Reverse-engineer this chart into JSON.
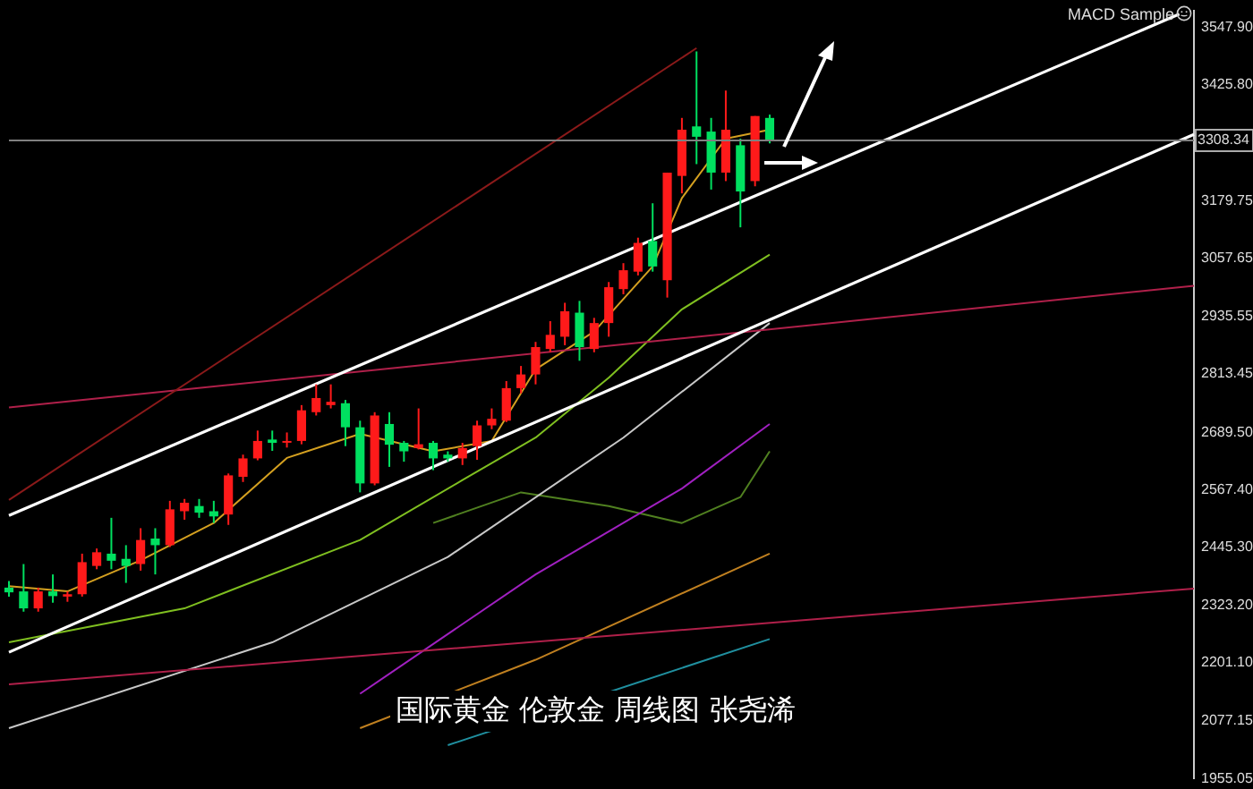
{
  "chart_data": {
    "type": "candlestick",
    "categories": [
      null,
      null,
      null,
      null,
      null,
      null,
      null,
      null,
      null,
      null,
      null,
      null,
      null,
      null,
      null,
      null,
      null,
      null,
      null,
      null,
      null,
      null,
      null,
      null,
      null,
      null,
      null,
      null,
      null,
      null,
      null,
      null,
      null,
      null,
      null,
      null,
      null,
      null,
      null,
      null,
      null,
      null,
      null,
      null,
      null,
      null,
      null,
      null,
      null,
      null,
      null,
      null,
      null,
      null,
      null,
      null,
      null,
      null,
      null,
      null,
      null,
      null,
      null,
      null,
      null,
      null,
      null,
      null,
      null,
      null,
      null,
      null,
      null,
      null,
      null,
      null,
      null,
      null,
      null,
      null,
      null,
      null
    ],
    "ohlc": [
      [
        2360,
        2374,
        2341,
        2350
      ],
      [
        2352,
        2410,
        2309,
        2316
      ],
      [
        2316,
        2360,
        2309,
        2352
      ],
      [
        2352,
        2388,
        2328,
        2342
      ],
      [
        2341,
        2352,
        2330,
        2346
      ],
      [
        2346,
        2432,
        2341,
        2414
      ],
      [
        2406,
        2443,
        2399,
        2435
      ],
      [
        2432,
        2508,
        2399,
        2417
      ],
      [
        2421,
        2450,
        2370,
        2406
      ],
      [
        2410,
        2486,
        2396,
        2461
      ],
      [
        2464,
        2486,
        2388,
        2450
      ],
      [
        2450,
        2544,
        2446,
        2526
      ],
      [
        2522,
        2548,
        2504,
        2540
      ],
      [
        2533,
        2548,
        2508,
        2519
      ],
      [
        2522,
        2544,
        2497,
        2511
      ],
      [
        2515,
        2602,
        2493,
        2598
      ],
      [
        2595,
        2642,
        2584,
        2634
      ],
      [
        2634,
        2693,
        2630,
        2671
      ],
      [
        2674,
        2693,
        2650,
        2667
      ],
      [
        2668,
        2689,
        2657,
        2671
      ],
      [
        2671,
        2747,
        2664,
        2736
      ],
      [
        2732,
        2791,
        2725,
        2762
      ],
      [
        2747,
        2791,
        2740,
        2754
      ],
      [
        2751,
        2758,
        2660,
        2700
      ],
      [
        2700,
        2714,
        2562,
        2581
      ],
      [
        2581,
        2732,
        2577,
        2725
      ],
      [
        2707,
        2732,
        2616,
        2663
      ],
      [
        2667,
        2671,
        2627,
        2649
      ],
      [
        2656,
        2740,
        2653,
        2664
      ],
      [
        2667,
        2671,
        2609,
        2634
      ],
      [
        2642,
        2649,
        2627,
        2634
      ],
      [
        2634,
        2667,
        2620,
        2656
      ],
      [
        2660,
        2714,
        2631,
        2704
      ],
      [
        2704,
        2740,
        2696,
        2718
      ],
      [
        2714,
        2798,
        2711,
        2783
      ],
      [
        2783,
        2830,
        2772,
        2812
      ],
      [
        2812,
        2881,
        2791,
        2870
      ],
      [
        2866,
        2925,
        2859,
        2896
      ],
      [
        2892,
        2964,
        2874,
        2946
      ],
      [
        2943,
        2968,
        2841,
        2870
      ],
      [
        2866,
        2932,
        2859,
        2921
      ],
      [
        2921,
        3008,
        2892,
        2997
      ],
      [
        2993,
        3048,
        2982,
        3033
      ],
      [
        3030,
        3102,
        3022,
        3091
      ],
      [
        3095,
        3175,
        3030,
        3041
      ],
      [
        3012,
        3240,
        2975,
        3240
      ],
      [
        3233,
        3356,
        3196,
        3331
      ],
      [
        3338,
        3497,
        3258,
        3316
      ],
      [
        3327,
        3356,
        3204,
        3240
      ],
      [
        3240,
        3414,
        3222,
        3331
      ],
      [
        3298,
        3312,
        3124,
        3200
      ],
      [
        3222,
        3360,
        3211,
        3360
      ],
      [
        3356,
        3363,
        3302,
        3309
      ],
      null,
      null,
      null,
      null,
      null,
      null,
      null,
      null,
      null,
      null,
      null,
      null,
      null,
      null,
      null,
      null,
      null,
      null,
      null,
      null,
      null,
      null,
      null,
      null,
      null,
      null,
      null,
      null,
      null
    ],
    "colors": [
      "#00e060",
      "#00e060",
      "#ff1a1a",
      "#00e060",
      "#ff1a1a",
      "#ff1a1a",
      "#ff1a1a",
      "#00e060",
      "#00e060",
      "#ff1a1a",
      "#00e060",
      "#ff1a1a",
      "#ff1a1a",
      "#00e060",
      "#00e060",
      "#ff1a1a",
      "#ff1a1a",
      "#ff1a1a",
      "#00e060",
      "#ff1a1a",
      "#ff1a1a",
      "#ff1a1a",
      "#ff1a1a",
      "#00e060",
      "#00e060",
      "#ff1a1a",
      "#00e060",
      "#00e060",
      "#ff1a1a",
      "#00e060",
      "#00e060",
      "#ff1a1a",
      "#ff1a1a",
      "#ff1a1a",
      "#ff1a1a",
      "#ff1a1a",
      "#ff1a1a",
      "#ff1a1a",
      "#ff1a1a",
      "#00e060",
      "#ff1a1a",
      "#ff1a1a",
      "#ff1a1a",
      "#ff1a1a",
      "#00e060",
      "#ff1a1a",
      "#ff1a1a",
      "#00e060",
      "#00e060",
      "#ff1a1a",
      "#00e060",
      "#ff1a1a",
      "#00e060",
      null,
      null,
      null,
      null,
      null,
      null,
      null,
      null,
      null,
      null,
      null,
      null,
      null,
      null,
      null,
      null,
      null,
      null,
      null,
      null,
      null,
      null,
      null,
      null,
      null,
      null,
      null,
      null,
      null
    ],
    "series": [
      {
        "type": "line",
        "color": "#ffffff",
        "values": [
          2513,
          null,
          null,
          null,
          null,
          null,
          null,
          null,
          null,
          null,
          null,
          null,
          null,
          null,
          null,
          null,
          null,
          null,
          null,
          null,
          null,
          null,
          null,
          null,
          null,
          null,
          null,
          null,
          null,
          null,
          null,
          null,
          null,
          null,
          null,
          null,
          null,
          null,
          null,
          null,
          null,
          null,
          null,
          null,
          null,
          null,
          null,
          null,
          null,
          null,
          null,
          null,
          null,
          null,
          null,
          null,
          null,
          null,
          null,
          null,
          null,
          null,
          null,
          null,
          null,
          null,
          null,
          null,
          null,
          null,
          null,
          null,
          null,
          null,
          null,
          null,
          null,
          null,
          null,
          null,
          3576,
          null
        ]
      },
      {
        "type": "line",
        "color": "#ffffff",
        "values": [
          2223,
          null,
          null,
          null,
          null,
          null,
          null,
          null,
          null,
          null,
          null,
          null,
          null,
          null,
          null,
          null,
          null,
          null,
          null,
          null,
          null,
          null,
          null,
          null,
          null,
          null,
          null,
          null,
          null,
          null,
          null,
          null,
          null,
          null,
          null,
          null,
          null,
          null,
          null,
          null,
          null,
          null,
          null,
          null,
          null,
          null,
          null,
          null,
          null,
          null,
          null,
          null,
          null,
          null,
          null,
          null,
          null,
          null,
          null,
          null,
          null,
          null,
          null,
          null,
          null,
          null,
          null,
          null,
          null,
          null,
          null,
          null,
          null,
          null,
          null,
          null,
          null,
          null,
          null,
          null,
          null,
          3321
        ]
      },
      {
        "type": "line",
        "color": "#8b1a1a",
        "values": [
          2546,
          null,
          null,
          null,
          null,
          null,
          null,
          null,
          null,
          null,
          null,
          null,
          null,
          null,
          null,
          null,
          null,
          null,
          null,
          null,
          null,
          null,
          null,
          null,
          null,
          null,
          null,
          null,
          null,
          null,
          null,
          null,
          null,
          null,
          null,
          null,
          null,
          null,
          null,
          null,
          null,
          null,
          null,
          null,
          null,
          null,
          null,
          3504,
          null,
          null,
          null,
          null,
          null,
          null,
          null,
          null,
          null,
          null,
          null,
          null,
          null,
          null,
          null,
          null,
          null,
          null,
          null,
          null,
          null,
          null,
          null,
          null,
          null,
          null,
          null,
          null,
          null,
          null,
          null,
          null,
          null,
          null
        ]
      },
      {
        "type": "line",
        "color": "#b0204a",
        "values": [
          2742,
          null,
          null,
          null,
          null,
          null,
          null,
          null,
          null,
          null,
          null,
          null,
          null,
          null,
          null,
          null,
          null,
          null,
          null,
          null,
          null,
          null,
          null,
          null,
          null,
          null,
          null,
          null,
          null,
          null,
          null,
          null,
          null,
          null,
          null,
          null,
          null,
          null,
          null,
          null,
          null,
          null,
          null,
          null,
          null,
          null,
          null,
          null,
          null,
          null,
          null,
          null,
          null,
          null,
          null,
          null,
          null,
          null,
          null,
          null,
          null,
          null,
          null,
          null,
          null,
          null,
          null,
          null,
          null,
          null,
          null,
          null,
          null,
          null,
          null,
          null,
          null,
          null,
          null,
          null,
          null,
          3000
        ]
      },
      {
        "type": "line",
        "color": "#b0204a",
        "values": [
          2155,
          null,
          null,
          null,
          null,
          null,
          null,
          null,
          null,
          null,
          null,
          null,
          null,
          null,
          null,
          null,
          null,
          null,
          null,
          null,
          null,
          null,
          null,
          null,
          null,
          null,
          null,
          null,
          null,
          null,
          null,
          null,
          null,
          null,
          null,
          null,
          null,
          null,
          null,
          null,
          null,
          null,
          null,
          null,
          null,
          null,
          null,
          null,
          null,
          null,
          null,
          null,
          null,
          null,
          null,
          null,
          null,
          null,
          null,
          null,
          null,
          null,
          null,
          null,
          null,
          null,
          null,
          null,
          null,
          null,
          null,
          null,
          null,
          null,
          null,
          null,
          null,
          null,
          null,
          null,
          null,
          2358
        ]
      },
      {
        "type": "line",
        "color": "#d4a020",
        "values": [
          2363,
          null,
          null,
          null,
          2352,
          null,
          null,
          null,
          null,
          2418,
          null,
          null,
          null,
          null,
          2497,
          null,
          null,
          null,
          null,
          2635,
          null,
          null,
          null,
          null,
          2686,
          null,
          null,
          null,
          null,
          2649,
          null,
          null,
          null,
          2671,
          null,
          null,
          2823,
          null,
          null,
          null,
          2903,
          null,
          null,
          null,
          3041,
          null,
          3186,
          null,
          null,
          3312,
          null,
          null,
          3331,
          null,
          null,
          null,
          null,
          null,
          null,
          null,
          null,
          null,
          null,
          null,
          null,
          null,
          null,
          null,
          null,
          null,
          null,
          null,
          null,
          null,
          null,
          null,
          null,
          null,
          null,
          null,
          null,
          null
        ]
      },
      {
        "type": "line",
        "color": "#7fbf20",
        "values": [
          2244,
          null,
          null,
          null,
          null,
          null,
          null,
          null,
          null,
          null,
          null,
          null,
          2316,
          null,
          null,
          null,
          null,
          null,
          null,
          null,
          null,
          null,
          null,
          null,
          2461,
          null,
          null,
          null,
          null,
          null,
          null,
          2588,
          null,
          null,
          null,
          null,
          2678,
          null,
          null,
          null,
          null,
          2805,
          null,
          null,
          null,
          null,
          2950,
          null,
          null,
          null,
          null,
          null,
          3066,
          null,
          null,
          null,
          null,
          null,
          null,
          null,
          null,
          null,
          null,
          null,
          null,
          null,
          null,
          null,
          null,
          null,
          null,
          null,
          null,
          null,
          null,
          null,
          null,
          null,
          null,
          null,
          null,
          null
        ]
      },
      {
        "type": "line",
        "color": "#c8c8c8",
        "values": [
          2062,
          null,
          null,
          null,
          null,
          null,
          null,
          null,
          null,
          null,
          null,
          null,
          null,
          null,
          null,
          null,
          null,
          null,
          2244,
          null,
          null,
          null,
          null,
          null,
          null,
          null,
          null,
          null,
          null,
          null,
          2425,
          null,
          null,
          null,
          null,
          null,
          null,
          null,
          null,
          null,
          null,
          null,
          2678,
          null,
          null,
          null,
          null,
          null,
          null,
          null,
          null,
          null,
          2921,
          null,
          null,
          null,
          null,
          null,
          null,
          null,
          null,
          null,
          null,
          null,
          null,
          null,
          null,
          null,
          null,
          null,
          null,
          null,
          null,
          null,
          null,
          null,
          null,
          null,
          null,
          null,
          null,
          null
        ]
      },
      {
        "type": "line",
        "color": "#a020c0",
        "values": [
          null,
          null,
          null,
          null,
          null,
          null,
          null,
          null,
          null,
          null,
          null,
          null,
          null,
          null,
          null,
          null,
          null,
          null,
          null,
          null,
          null,
          null,
          null,
          null,
          2135,
          null,
          null,
          null,
          null,
          null,
          null,
          null,
          null,
          null,
          null,
          null,
          2388,
          null,
          null,
          null,
          null,
          null,
          null,
          null,
          null,
          null,
          2570,
          null,
          null,
          null,
          null,
          null,
          2707,
          null,
          null,
          null,
          null,
          null,
          null,
          null,
          null,
          null,
          null,
          null,
          null,
          null,
          null,
          null,
          null,
          null,
          null,
          null,
          null,
          null,
          null,
          null,
          null,
          null,
          null,
          null,
          null,
          null
        ]
      },
      {
        "type": "line",
        "color": "#508020",
        "values": [
          null,
          null,
          null,
          null,
          null,
          null,
          null,
          null,
          null,
          null,
          null,
          null,
          null,
          null,
          null,
          null,
          null,
          null,
          null,
          null,
          null,
          null,
          null,
          null,
          null,
          null,
          null,
          null,
          null,
          2497,
          null,
          null,
          null,
          null,
          null,
          2562,
          null,
          null,
          null,
          null,
          null,
          2533,
          null,
          null,
          null,
          null,
          2497,
          null,
          null,
          null,
          2552,
          null,
          2649,
          null,
          null,
          null,
          null,
          null,
          null,
          null,
          null,
          null,
          null,
          null,
          null,
          null,
          null,
          null,
          null,
          null,
          null,
          null,
          null,
          null,
          null,
          null,
          null,
          null,
          null,
          null,
          null,
          null
        ]
      },
      {
        "type": "line",
        "color": "#c08020",
        "values": [
          null,
          null,
          null,
          null,
          null,
          null,
          null,
          null,
          null,
          null,
          null,
          null,
          null,
          null,
          null,
          null,
          null,
          null,
          null,
          null,
          null,
          null,
          null,
          null,
          2062,
          null,
          null,
          null,
          null,
          null,
          null,
          null,
          null,
          null,
          null,
          null,
          2207,
          null,
          null,
          null,
          null,
          null,
          null,
          null,
          null,
          null,
          null,
          null,
          null,
          null,
          null,
          null,
          2432,
          null,
          null,
          null,
          null,
          null,
          null,
          null,
          null,
          null,
          null,
          null,
          null,
          null,
          null,
          null,
          null,
          null,
          null,
          null,
          null,
          null,
          null,
          null,
          null,
          null,
          null,
          null,
          null,
          null
        ]
      },
      {
        "type": "line",
        "color": "#2090a0",
        "values": [
          null,
          null,
          null,
          null,
          null,
          null,
          null,
          null,
          null,
          null,
          null,
          null,
          null,
          null,
          null,
          null,
          null,
          null,
          null,
          null,
          null,
          null,
          null,
          null,
          null,
          null,
          null,
          null,
          null,
          null,
          2026,
          null,
          null,
          null,
          null,
          null,
          null,
          null,
          null,
          null,
          null,
          null,
          null,
          null,
          null,
          null,
          null,
          null,
          null,
          null,
          null,
          null,
          2251,
          null,
          null,
          null,
          null,
          null,
          null,
          null,
          null,
          null,
          null,
          null,
          null,
          null,
          null,
          null,
          null,
          null,
          null,
          null,
          null,
          null,
          null,
          null,
          null,
          null,
          null,
          null,
          null,
          null
        ]
      }
    ],
    "ylim": [
      1955,
      3584
    ],
    "yticks": [
      {
        "value": 1955.05,
        "label": "1955.05"
      },
      {
        "value": 2077.15,
        "label": "2077.15"
      },
      {
        "value": 2201.1,
        "label": "2201.10"
      },
      {
        "value": 2323.2,
        "label": "2323.20"
      },
      {
        "value": 2445.3,
        "label": "2445.30"
      },
      {
        "value": 2567.4,
        "label": "2567.40"
      },
      {
        "value": 2689.5,
        "label": "2689.50"
      },
      {
        "value": 2813.45,
        "label": "2813.45"
      },
      {
        "value": 2935.55,
        "label": "2935.55"
      },
      {
        "value": 3057.65,
        "label": "3057.65"
      },
      {
        "value": 3179.75,
        "label": "3179.75"
      },
      {
        "value": 3425.8,
        "label": "3425.80"
      },
      {
        "value": 3547.9,
        "label": "3547.90"
      }
    ],
    "ref_lines": [
      {
        "axis": "y",
        "value": 3308.34,
        "label": "3308.34",
        "color": "#808080"
      }
    ],
    "tick_labels": "y",
    "grid": false,
    "legend": false,
    "annotations": [
      "MACD Sample",
      "国际黄金 伦敦金 周线图 张尧浠"
    ]
  }
}
